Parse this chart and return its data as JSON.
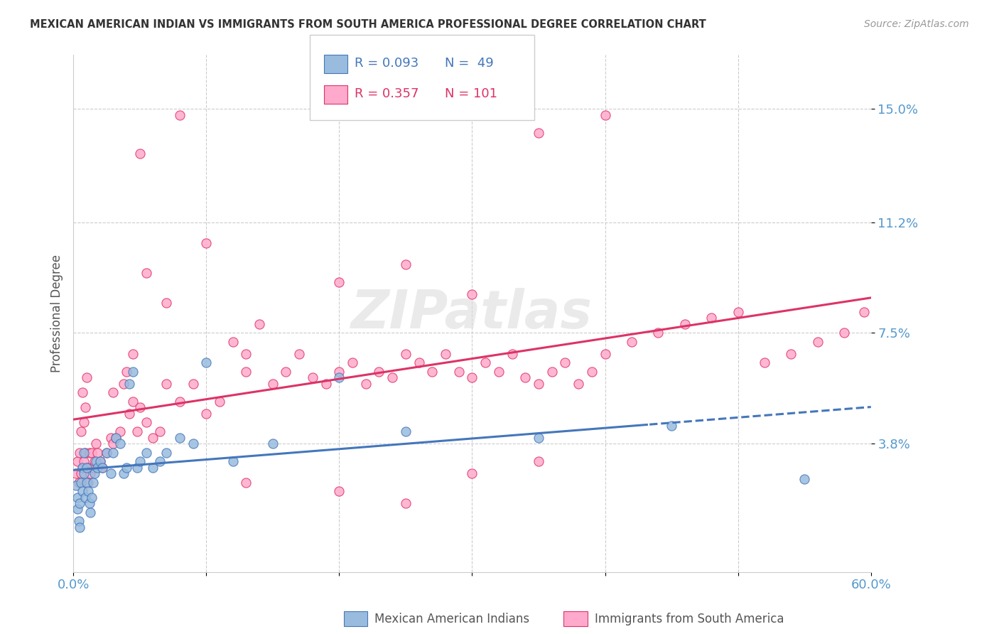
{
  "title": "MEXICAN AMERICAN INDIAN VS IMMIGRANTS FROM SOUTH AMERICA PROFESSIONAL DEGREE CORRELATION CHART",
  "source": "Source: ZipAtlas.com",
  "ylabel": "Professional Degree",
  "ytick_vals": [
    0.038,
    0.075,
    0.112,
    0.15
  ],
  "ytick_labels": [
    "3.8%",
    "7.5%",
    "11.2%",
    "15.0%"
  ],
  "xlim": [
    0.0,
    0.6
  ],
  "ylim": [
    -0.005,
    0.168
  ],
  "legend_r1": "R = 0.093",
  "legend_n1": "N =  49",
  "legend_r2": "R = 0.357",
  "legend_n2": "N = 101",
  "color_blue_fill": "#99BBDD",
  "color_blue_edge": "#4477BB",
  "color_pink_fill": "#FFAACC",
  "color_pink_edge": "#DD3366",
  "color_axis_labels": "#5599CC",
  "blue_scatter_x": [
    0.002,
    0.003,
    0.003,
    0.004,
    0.005,
    0.005,
    0.006,
    0.007,
    0.007,
    0.008,
    0.008,
    0.009,
    0.01,
    0.01,
    0.011,
    0.012,
    0.013,
    0.014,
    0.015,
    0.016,
    0.017,
    0.018,
    0.02,
    0.022,
    0.025,
    0.028,
    0.03,
    0.032,
    0.035,
    0.038,
    0.04,
    0.042,
    0.045,
    0.048,
    0.05,
    0.055,
    0.06,
    0.065,
    0.07,
    0.08,
    0.09,
    0.1,
    0.12,
    0.15,
    0.2,
    0.25,
    0.35,
    0.45,
    0.55
  ],
  "blue_scatter_y": [
    0.024,
    0.02,
    0.016,
    0.012,
    0.01,
    0.018,
    0.025,
    0.022,
    0.03,
    0.028,
    0.035,
    0.02,
    0.03,
    0.025,
    0.022,
    0.018,
    0.015,
    0.02,
    0.025,
    0.028,
    0.032,
    0.03,
    0.032,
    0.03,
    0.035,
    0.028,
    0.035,
    0.04,
    0.038,
    0.028,
    0.03,
    0.058,
    0.062,
    0.03,
    0.032,
    0.035,
    0.03,
    0.032,
    0.035,
    0.04,
    0.038,
    0.065,
    0.032,
    0.038,
    0.06,
    0.042,
    0.04,
    0.044,
    0.026
  ],
  "pink_scatter_x": [
    0.002,
    0.003,
    0.004,
    0.005,
    0.006,
    0.006,
    0.007,
    0.007,
    0.008,
    0.008,
    0.009,
    0.009,
    0.01,
    0.01,
    0.011,
    0.012,
    0.012,
    0.013,
    0.014,
    0.015,
    0.016,
    0.017,
    0.018,
    0.02,
    0.022,
    0.025,
    0.028,
    0.03,
    0.032,
    0.035,
    0.038,
    0.04,
    0.042,
    0.045,
    0.048,
    0.05,
    0.055,
    0.06,
    0.065,
    0.07,
    0.08,
    0.09,
    0.1,
    0.11,
    0.12,
    0.13,
    0.14,
    0.15,
    0.16,
    0.17,
    0.18,
    0.19,
    0.2,
    0.21,
    0.22,
    0.23,
    0.24,
    0.25,
    0.26,
    0.27,
    0.28,
    0.29,
    0.3,
    0.31,
    0.32,
    0.33,
    0.34,
    0.35,
    0.36,
    0.37,
    0.38,
    0.39,
    0.4,
    0.42,
    0.44,
    0.46,
    0.48,
    0.5,
    0.52,
    0.54,
    0.56,
    0.58,
    0.595,
    0.03,
    0.045,
    0.055,
    0.08,
    0.1,
    0.13,
    0.2,
    0.25,
    0.3,
    0.35,
    0.4,
    0.13,
    0.2,
    0.25,
    0.3,
    0.35,
    0.05,
    0.07
  ],
  "pink_scatter_y": [
    0.028,
    0.032,
    0.025,
    0.035,
    0.028,
    0.042,
    0.03,
    0.055,
    0.032,
    0.045,
    0.035,
    0.05,
    0.03,
    0.06,
    0.025,
    0.03,
    0.035,
    0.028,
    0.035,
    0.03,
    0.032,
    0.038,
    0.035,
    0.032,
    0.03,
    0.035,
    0.04,
    0.038,
    0.04,
    0.042,
    0.058,
    0.062,
    0.048,
    0.052,
    0.042,
    0.05,
    0.045,
    0.04,
    0.042,
    0.058,
    0.052,
    0.058,
    0.048,
    0.052,
    0.072,
    0.062,
    0.078,
    0.058,
    0.062,
    0.068,
    0.06,
    0.058,
    0.062,
    0.065,
    0.058,
    0.062,
    0.06,
    0.068,
    0.065,
    0.062,
    0.068,
    0.062,
    0.06,
    0.065,
    0.062,
    0.068,
    0.06,
    0.058,
    0.062,
    0.065,
    0.058,
    0.062,
    0.068,
    0.072,
    0.075,
    0.078,
    0.08,
    0.082,
    0.065,
    0.068,
    0.072,
    0.075,
    0.082,
    0.055,
    0.068,
    0.095,
    0.148,
    0.105,
    0.068,
    0.022,
    0.018,
    0.028,
    0.032,
    0.148,
    0.025,
    0.092,
    0.098,
    0.088,
    0.142,
    0.135,
    0.085
  ]
}
